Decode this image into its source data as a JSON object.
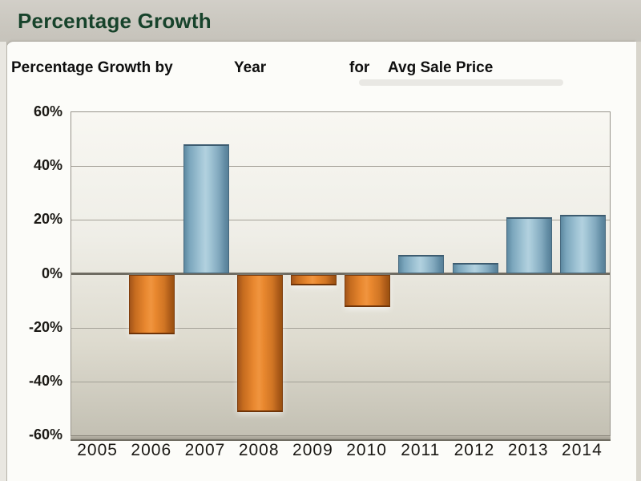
{
  "page": {
    "title": "Percentage Growth"
  },
  "subtitle": {
    "prefix": "Percentage Growth by",
    "dimension_value": "Year",
    "connector": "for",
    "measure_value": "Avg Sale Price"
  },
  "colors": {
    "title_green": "#17432b",
    "header_bg": "#cbc8c0",
    "card_bg": "#fcfcf9",
    "plot_bg_top": "#f8f7f2",
    "plot_bg_bottom": "#c3c0b3",
    "gridline": "#a4a097",
    "zero_line": "#6e6b61",
    "positive_bar": "#9fc3d4",
    "negative_bar": "#e8872f"
  },
  "chart_data": {
    "type": "bar",
    "title": "Percentage Growth by Year for Avg Sale Price",
    "xlabel": "Year",
    "ylabel": "Percentage Growth",
    "unit": "%",
    "categories": [
      "2005",
      "2006",
      "2007",
      "2008",
      "2009",
      "2010",
      "2011",
      "2012",
      "2013",
      "2014"
    ],
    "values": [
      0,
      -22,
      48,
      -51,
      -4,
      -12,
      7,
      4,
      21,
      22
    ],
    "ylim": [
      -60,
      60
    ],
    "ytick_step": 20,
    "ytick_labels": [
      "60%",
      "40%",
      "20%",
      "0%",
      "-20%",
      "-40%",
      "-60%"
    ],
    "grid": true,
    "legend": false,
    "bar_color_positive_meaning": "growth",
    "bar_color_negative_meaning": "decline"
  }
}
